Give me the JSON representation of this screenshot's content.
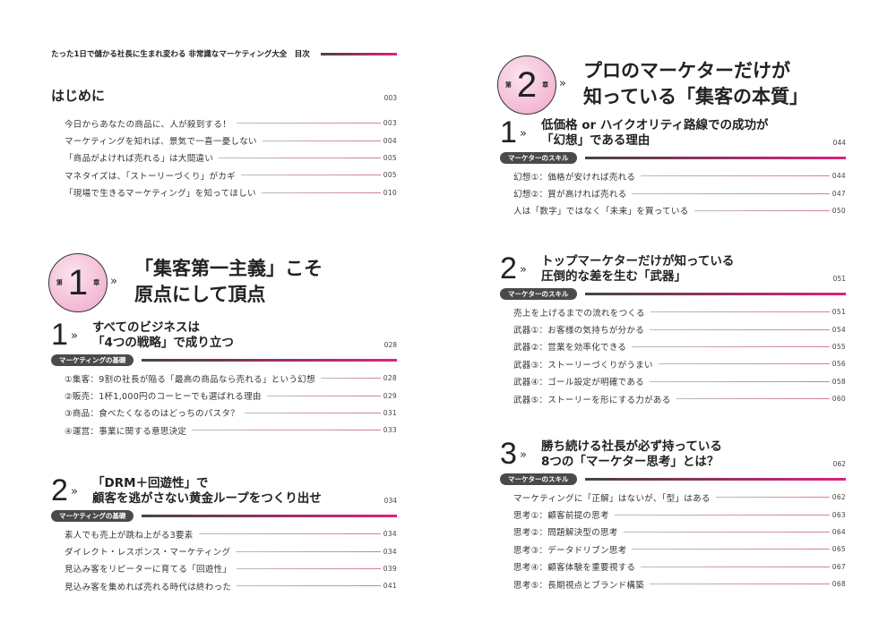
{
  "header_title": "たった1日で儲かる社長に生まれ変わる 非常識なマーケティング大全　目次",
  "intro": {
    "title": "はじめに",
    "page": "003",
    "items": [
      {
        "text": "今日からあなたの商品に、人が殺到する！",
        "page": "003"
      },
      {
        "text": "マーケティングを知れば、景気で一喜一憂しない",
        "page": "004"
      },
      {
        "text": "「商品がよければ売れる」は大間違い",
        "page": "005"
      },
      {
        "text": "マネタイズは、「ストーリーづくり」がカギ",
        "page": "005"
      },
      {
        "text": "「現場で生きるマーケティング」を知ってほしい",
        "page": "010"
      }
    ]
  },
  "chapters": [
    {
      "pre": "第",
      "number": "1",
      "post": "章",
      "chevron": "»",
      "title": [
        "「集客第一主義」こそ",
        "原点にして頂点"
      ],
      "sections": [
        {
          "number": "1",
          "title": [
            "すべてのビジネスは",
            "「4つの戦略」で成り立つ"
          ],
          "page": "028",
          "badge": "マーケティングの基礎",
          "items": [
            {
              "text": "①集客：9割の社長が陥る「最高の商品なら売れる」という幻想",
              "page": "028"
            },
            {
              "text": "②販売：1杯1,000円のコーヒーでも選ばれる理由",
              "page": "029"
            },
            {
              "text": "③商品：食べたくなるのはどっちのパスタ？",
              "page": "031"
            },
            {
              "text": "④運営：事業に関する意思決定",
              "page": "033"
            }
          ]
        },
        {
          "number": "2",
          "title": [
            "「DRM＋回遊性」で",
            "顧客を逃がさない黄金ループをつくり出せ"
          ],
          "page": "034",
          "badge": "マーケティングの基礎",
          "items": [
            {
              "text": "素人でも売上が跳ね上がる3要素",
              "page": "034"
            },
            {
              "text": "ダイレクト・レスポンス・マーケティング",
              "page": "034"
            },
            {
              "text": "見込み客をリピーターに育てる「回遊性」",
              "page": "039"
            },
            {
              "text": "見込み客を集めれば売れる時代は終わった",
              "page": "041"
            }
          ]
        }
      ]
    },
    {
      "pre": "第",
      "number": "2",
      "post": "章",
      "chevron": "»",
      "title": [
        "プロのマーケターだけが",
        "知っている「集客の本質」"
      ],
      "sections": [
        {
          "number": "1",
          "title": [
            "低価格 or ハイクオリティ路線での成功が",
            "「幻想」である理由"
          ],
          "page": "044",
          "badge": "マーケターのスキル",
          "items": [
            {
              "text": "幻想①：価格が安ければ売れる",
              "page": "044"
            },
            {
              "text": "幻想②：質が高ければ売れる",
              "page": "047"
            },
            {
              "text": "人は「数字」ではなく「未来」を買っている",
              "page": "050"
            }
          ]
        },
        {
          "number": "2",
          "title": [
            "トップマーケターだけが知っている",
            "圧倒的な差を生む「武器」"
          ],
          "page": "051",
          "badge": "マーケターのスキル",
          "items": [
            {
              "text": "売上を上げるまでの流れをつくる",
              "page": "051"
            },
            {
              "text": "武器①：お客様の気持ちが分かる",
              "page": "054"
            },
            {
              "text": "武器②：営業を効率化できる",
              "page": "055"
            },
            {
              "text": "武器③：ストーリーづくりがうまい",
              "page": "056"
            },
            {
              "text": "武器④：ゴール設定が明確である",
              "page": "058"
            },
            {
              "text": "武器⑤：ストーリーを形にする力がある",
              "page": "060"
            }
          ]
        },
        {
          "number": "3",
          "title": [
            "勝ち続ける社長が必ず持っている",
            "8つの「マーケター思考」とは？"
          ],
          "page": "062",
          "badge": "マーケターのスキル",
          "items": [
            {
              "text": "マーケティングに「正解」はないが、「型」はある",
              "page": "062"
            },
            {
              "text": "思考①：顧客前提の思考",
              "page": "063"
            },
            {
              "text": "思考②：問題解決型の思考",
              "page": "064"
            },
            {
              "text": "思考③：データドリブン思考",
              "page": "065"
            },
            {
              "text": "思考④：顧客体験を重要視する",
              "page": "067"
            },
            {
              "text": "思考⑤：長期視点とブランド構築",
              "page": "068"
            }
          ]
        }
      ]
    }
  ],
  "colors": {
    "accent": "#e0207f",
    "badge": "#4a4a4a",
    "circle": "#f0a7c9"
  }
}
